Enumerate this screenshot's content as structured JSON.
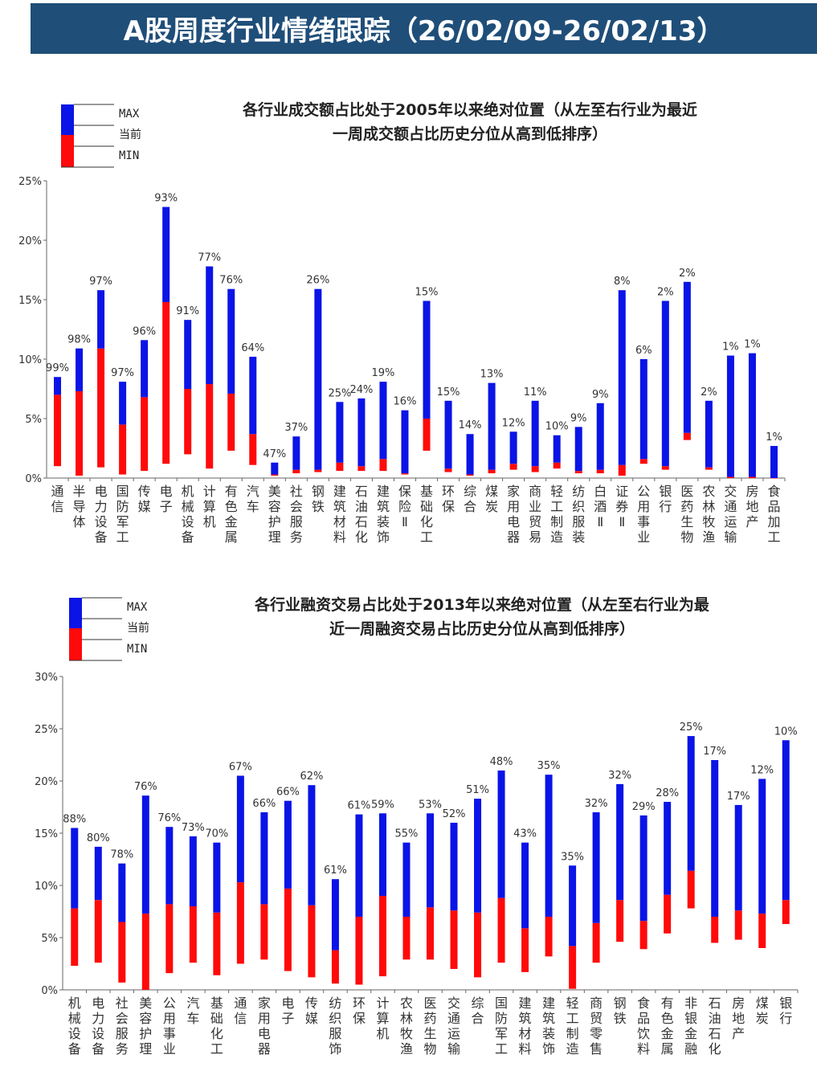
{
  "banner": {
    "title": "A股周度行业情绪跟踪（26/02/09-26/02/13）"
  },
  "legend": {
    "max": "MAX",
    "current": "当前",
    "min": "MIN"
  },
  "colors": {
    "upper": "#0a14e6",
    "lower": "#ff0a0a",
    "banner": "#1f4e79"
  },
  "chart_data": [
    {
      "type": "bar",
      "title": [
        "各行业成交额占比处于2005年以来绝对位置（从左至右行业为最近",
        "一周成交额占比历史分位从高到低排序）"
      ],
      "ylim": [
        0,
        25
      ],
      "yticks": [
        "0%",
        "5%",
        "10%",
        "15%",
        "20%",
        "25%"
      ],
      "categories": [
        "通信",
        "半导体",
        "电力设备",
        "国防军工",
        "传媒",
        "电子",
        "机械设备",
        "计算机",
        "有色金属",
        "汽车",
        "美容护理",
        "社会服务",
        "钢铁",
        "建筑材料",
        "石油石化",
        "建筑装饰",
        "保险Ⅱ",
        "基础化工",
        "环保",
        "综合",
        "煤炭",
        "家用电器",
        "商业贸易",
        "轻工制造",
        "纺织服装",
        "白酒Ⅱ",
        "证券Ⅱ",
        "公用事业",
        "银行",
        "医药生物",
        "农林牧渔",
        "交通运输",
        "房地产",
        "食品加工"
      ],
      "series": [
        {
          "name": "MIN",
          "values": [
            1.0,
            0.2,
            0.9,
            0.3,
            0.6,
            1.2,
            2.0,
            0.8,
            2.3,
            1.1,
            0.2,
            0.4,
            0.5,
            0.6,
            0.6,
            0.6,
            0.3,
            2.3,
            0.5,
            0.2,
            0.4,
            0.7,
            0.5,
            0.8,
            0.4,
            0.4,
            0.2,
            1.2,
            0.7,
            3.2,
            0.7,
            0.0,
            0.0,
            0.0
          ]
        },
        {
          "name": "当前",
          "values": [
            7.0,
            7.3,
            10.9,
            4.5,
            6.8,
            14.8,
            7.5,
            7.9,
            7.1,
            3.7,
            0.3,
            0.7,
            0.7,
            1.3,
            1.0,
            1.6,
            0.4,
            5.0,
            0.8,
            0.3,
            0.7,
            1.2,
            1.0,
            1.3,
            0.6,
            0.7,
            1.1,
            1.6,
            1.0,
            3.8,
            0.9,
            0.1,
            0.1,
            0.0
          ]
        },
        {
          "name": "MAX",
          "values": [
            8.5,
            10.9,
            15.8,
            8.1,
            11.6,
            22.8,
            13.3,
            17.8,
            15.9,
            10.2,
            1.3,
            3.5,
            15.9,
            6.4,
            6.7,
            8.1,
            5.7,
            14.9,
            6.5,
            3.7,
            8.0,
            3.9,
            6.5,
            3.6,
            4.3,
            6.3,
            15.8,
            10.0,
            14.9,
            16.5,
            6.5,
            10.3,
            10.5,
            2.7
          ]
        }
      ],
      "pct_labels": [
        "99%",
        "98%",
        "97%",
        "97%",
        "96%",
        "93%",
        "91%",
        "77%",
        "76%",
        "64%",
        "47%",
        "37%",
        "26%",
        "25%",
        "24%",
        "19%",
        "16%",
        "15%",
        "15%",
        "14%",
        "13%",
        "12%",
        "11%",
        "10%",
        "9%",
        "9%",
        "8%",
        "6%",
        "2%",
        "2%",
        "2%",
        "1%",
        "1%",
        "1%"
      ]
    },
    {
      "type": "bar",
      "title": [
        "各行业融资交易占比处于2013年以来绝对位置（从左至右行业为最",
        "近一周融资交易占比历史分位从高到低排序）"
      ],
      "ylim": [
        0,
        30
      ],
      "yticks": [
        "0%",
        "5%",
        "10%",
        "15%",
        "20%",
        "25%",
        "30%"
      ],
      "categories": [
        "机械设备",
        "电力设备",
        "社会服务",
        "美容护理",
        "公用事业",
        "汽车",
        "基础化工",
        "通信",
        "家用电器",
        "电子",
        "传媒",
        "纺织服饰",
        "环保",
        "计算机",
        "农林牧渔",
        "医药生物",
        "交通运输",
        "综合",
        "国防军工",
        "建筑材料",
        "建筑装饰",
        "轻工制造",
        "商贸零售",
        "钢铁",
        "食品饮料",
        "有色金属",
        "非银金融",
        "石油石化",
        "房地产",
        "煤炭",
        "银行"
      ],
      "series": [
        {
          "name": "MIN",
          "values": [
            2.3,
            2.6,
            0.7,
            0.0,
            1.6,
            2.6,
            1.4,
            2.5,
            2.9,
            1.8,
            1.2,
            0.6,
            0.5,
            1.3,
            2.9,
            2.9,
            2.0,
            1.2,
            2.6,
            1.7,
            3.2,
            0.1,
            2.6,
            4.6,
            3.9,
            5.4,
            7.8,
            4.5,
            4.8,
            4.0,
            6.3
          ]
        },
        {
          "name": "当前",
          "values": [
            7.8,
            8.6,
            6.5,
            7.3,
            8.2,
            8.0,
            7.4,
            10.3,
            8.2,
            9.7,
            8.1,
            3.8,
            7.0,
            9.0,
            7.0,
            7.9,
            7.6,
            7.4,
            8.8,
            5.9,
            7.0,
            4.2,
            6.4,
            8.6,
            6.6,
            9.1,
            11.4,
            7.0,
            7.6,
            7.3,
            8.6
          ]
        },
        {
          "name": "MAX",
          "values": [
            15.5,
            13.7,
            12.1,
            18.6,
            15.6,
            14.7,
            14.1,
            20.5,
            17.0,
            18.1,
            19.6,
            10.6,
            16.8,
            16.9,
            14.1,
            16.9,
            16.0,
            18.3,
            21.0,
            14.1,
            20.6,
            11.9,
            17.0,
            19.7,
            16.7,
            18.0,
            24.3,
            22.0,
            17.7,
            20.2,
            23.9
          ]
        }
      ],
      "pct_labels": [
        "88%",
        "80%",
        "78%",
        "76%",
        "76%",
        "73%",
        "70%",
        "67%",
        "66%",
        "66%",
        "62%",
        "61%",
        "61%",
        "59%",
        "55%",
        "53%",
        "52%",
        "51%",
        "48%",
        "43%",
        "35%",
        "35%",
        "32%",
        "32%",
        "29%",
        "28%",
        "25%",
        "17%",
        "17%",
        "12%",
        "10%"
      ]
    }
  ]
}
